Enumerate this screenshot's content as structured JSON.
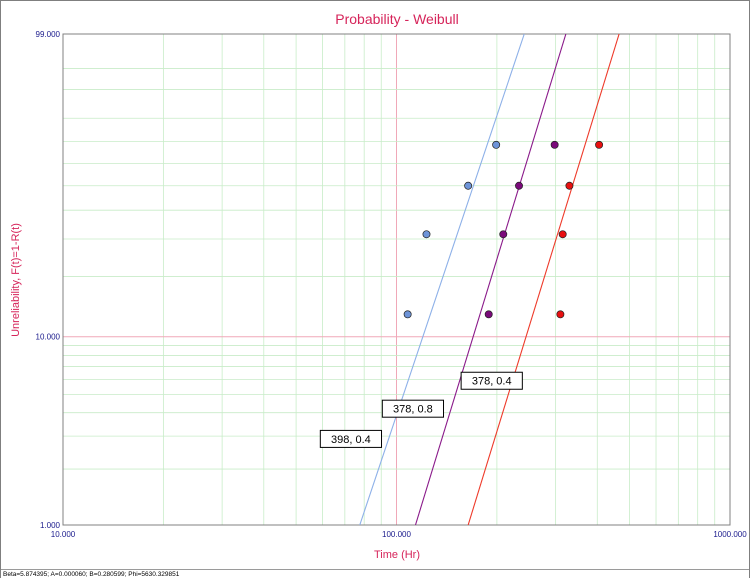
{
  "chart_data": {
    "type": "scatter",
    "title": "Probability - Weibull",
    "xlabel": "Time (Hr)",
    "ylabel": "Unreliability, F(t)=1-R(t)",
    "x_scale": "log",
    "y_scale": "weibull-probability",
    "xlim": [
      10,
      1000
    ],
    "ylim": [
      1,
      99
    ],
    "x_tick_labels": [
      "10.000",
      "100.000",
      "1000.000"
    ],
    "y_tick_labels": [
      "1.000",
      "10.000",
      "99.000"
    ],
    "grid": true,
    "series": [
      {
        "color": "#6e94d8",
        "line_color": "#8db0e8",
        "points": [
          [
            108,
            13.0
          ],
          [
            123,
            31.5
          ],
          [
            164,
            50.0
          ],
          [
            199,
            68.5
          ]
        ],
        "fit_line": [
          [
            77.6,
            1.0
          ],
          [
            241.6,
            99.0
          ]
        ]
      },
      {
        "color": "#7a0a7a",
        "line_color": "#8a1a8a",
        "points": [
          [
            189,
            13.0
          ],
          [
            209,
            31.5
          ],
          [
            233,
            50.0
          ],
          [
            298,
            68.5
          ]
        ],
        "fit_line": [
          [
            114,
            1.0
          ],
          [
            322,
            99.0
          ]
        ]
      },
      {
        "color": "#e81010",
        "line_color": "#ee3a2a",
        "points": [
          [
            310,
            13.0
          ],
          [
            315,
            31.5
          ],
          [
            330,
            50.0
          ],
          [
            405,
            68.5
          ]
        ],
        "fit_line": [
          [
            164,
            1.0
          ],
          [
            465,
            99.0
          ]
        ]
      }
    ],
    "annotations": [
      {
        "text": "398, 0.4",
        "x": 73,
        "y": 2.9
      },
      {
        "text": "378, 0.8",
        "x": 112,
        "y": 4.2
      },
      {
        "text": "378, 0.4",
        "x": 193,
        "y": 5.9
      }
    ],
    "footer": "Beta=5.874395; A=0.000060; B=0.280599; Phi=5630.329851"
  }
}
